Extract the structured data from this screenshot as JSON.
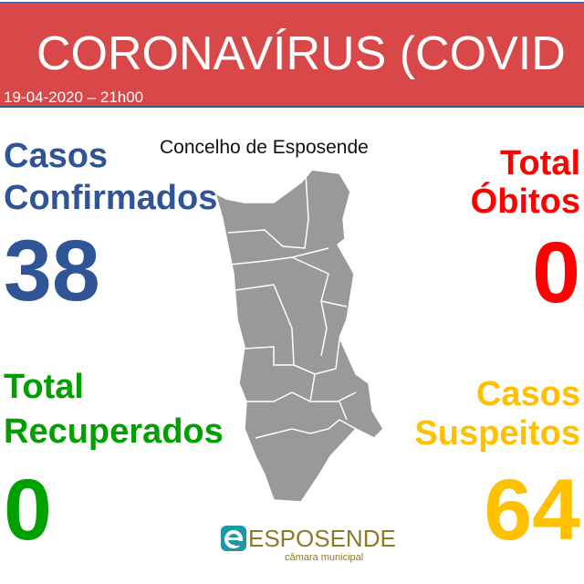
{
  "header": {
    "title": "CORONAVÍRUS (COVID",
    "date": "19-04-2020 – 21h00"
  },
  "map": {
    "title": "Concelho de Esposende",
    "fill": "#999999"
  },
  "stats": {
    "confirmed": {
      "line1": "Casos",
      "line2": "Confirmados",
      "value": "38",
      "color": "#2f5597"
    },
    "recovered": {
      "line1": "Total",
      "line2": "Recuperados",
      "value": "0",
      "color": "#00a000"
    },
    "deaths": {
      "line1": "Total",
      "line2": "Óbitos",
      "value": "0",
      "color": "#ff0000"
    },
    "suspected": {
      "line1": "Casos",
      "line2": "Suspeitos",
      "value": "64",
      "color": "#ffc000"
    }
  },
  "logo": {
    "brand": "ESPOSENDE",
    "sub": "câmara municipal",
    "color": "#1b9aa6"
  }
}
